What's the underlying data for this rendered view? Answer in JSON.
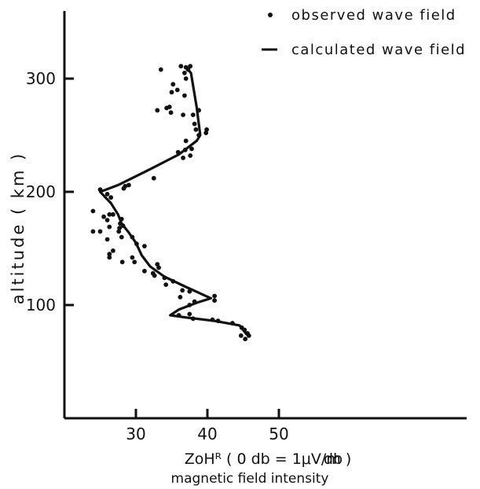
{
  "chart_data": {
    "type": "scatter",
    "title": "",
    "xlabel": "ZoHᴿ ( 0 db = 1μV/m )",
    "xlabel_sub": "magnetic field intensity",
    "x_unit": "db",
    "ylabel": "altitude ( km )",
    "xlim": [
      20,
      55
    ],
    "ylim": [
      0,
      360
    ],
    "xticks": [
      30,
      40,
      50
    ],
    "yticks": [
      100,
      200,
      300
    ],
    "xtick_labels": [
      "30",
      "40",
      "50"
    ],
    "ytick_labels": [
      "100",
      "200",
      "300"
    ],
    "grid": false,
    "legend_position": "top-right",
    "legend": [
      {
        "name": "observed wave field",
        "marker": "dot"
      },
      {
        "name": "calculated wave field",
        "marker": "line"
      }
    ],
    "series": [
      {
        "name": "observed wave field",
        "kind": "points",
        "points": [
          [
            37.0,
            310
          ],
          [
            37.3,
            308
          ],
          [
            36.8,
            305
          ],
          [
            37.6,
            311
          ],
          [
            36.3,
            311
          ],
          [
            37.0,
            300
          ],
          [
            33.5,
            308
          ],
          [
            35.2,
            295
          ],
          [
            35.8,
            290
          ],
          [
            36.8,
            285
          ],
          [
            35.0,
            288
          ],
          [
            34.7,
            275
          ],
          [
            34.3,
            274
          ],
          [
            34.9,
            270
          ],
          [
            33.0,
            272
          ],
          [
            36.6,
            268
          ],
          [
            38.0,
            268
          ],
          [
            38.8,
            272
          ],
          [
            38.2,
            260
          ],
          [
            38.4,
            255
          ],
          [
            39.8,
            252
          ],
          [
            39.9,
            255
          ],
          [
            38.8,
            250
          ],
          [
            37.0,
            245
          ],
          [
            35.9,
            235
          ],
          [
            36.9,
            237
          ],
          [
            37.6,
            232
          ],
          [
            37.8,
            238
          ],
          [
            36.6,
            230
          ],
          [
            32.5,
            212
          ],
          [
            29.0,
            206
          ],
          [
            28.5,
            205
          ],
          [
            28.3,
            203
          ],
          [
            25.0,
            202
          ],
          [
            26.0,
            198
          ],
          [
            26.5,
            195
          ],
          [
            24.0,
            183
          ],
          [
            25.5,
            178
          ],
          [
            26.3,
            180
          ],
          [
            26.8,
            180
          ],
          [
            26.0,
            175
          ],
          [
            28.0,
            176
          ],
          [
            27.8,
            172
          ],
          [
            28.2,
            170
          ],
          [
            26.3,
            169
          ],
          [
            27.7,
            168
          ],
          [
            24.0,
            165
          ],
          [
            25.0,
            165
          ],
          [
            27.6,
            165
          ],
          [
            28.0,
            160
          ],
          [
            26.0,
            158
          ],
          [
            29.5,
            160
          ],
          [
            30.1,
            154
          ],
          [
            31.2,
            152
          ],
          [
            26.8,
            148
          ],
          [
            26.3,
            145
          ],
          [
            26.3,
            142
          ],
          [
            29.5,
            142
          ],
          [
            28.1,
            138
          ],
          [
            29.8,
            138
          ],
          [
            31.2,
            130
          ],
          [
            33.0,
            136
          ],
          [
            33.2,
            133
          ],
          [
            32.4,
            128
          ],
          [
            32.6,
            126
          ],
          [
            34.0,
            124
          ],
          [
            35.2,
            121
          ],
          [
            34.2,
            118
          ],
          [
            37.5,
            112
          ],
          [
            36.5,
            113
          ],
          [
            36.2,
            107
          ],
          [
            41.0,
            108
          ],
          [
            41.0,
            104
          ],
          [
            37.5,
            100
          ],
          [
            38.2,
            103
          ],
          [
            37.5,
            92
          ],
          [
            36.0,
            91
          ],
          [
            38.0,
            88
          ],
          [
            40.7,
            87
          ],
          [
            41.5,
            86
          ],
          [
            43.5,
            84
          ],
          [
            44.8,
            80
          ],
          [
            45.2,
            78
          ],
          [
            45.6,
            75
          ],
          [
            45.8,
            73
          ],
          [
            44.7,
            73
          ],
          [
            45.3,
            70
          ]
        ]
      },
      {
        "name": "calculated wave field",
        "kind": "line",
        "points": [
          [
            37.0,
            310
          ],
          [
            37.7,
            305
          ],
          [
            38.5,
            275
          ],
          [
            39.0,
            250
          ],
          [
            38.5,
            245
          ],
          [
            36.0,
            233
          ],
          [
            32.0,
            220
          ],
          [
            27.5,
            206
          ],
          [
            25.0,
            200
          ],
          [
            26.5,
            190
          ],
          [
            27.5,
            180
          ],
          [
            28.0,
            172
          ],
          [
            29.0,
            164
          ],
          [
            30.0,
            155
          ],
          [
            30.8,
            144
          ],
          [
            32.0,
            134
          ],
          [
            34.0,
            125
          ],
          [
            37.0,
            116
          ],
          [
            40.5,
            106
          ],
          [
            38.5,
            102
          ],
          [
            36.0,
            96
          ],
          [
            34.8,
            91
          ],
          [
            37.0,
            89
          ],
          [
            41.0,
            86
          ],
          [
            44.5,
            82
          ],
          [
            45.5,
            74
          ]
        ]
      }
    ]
  }
}
